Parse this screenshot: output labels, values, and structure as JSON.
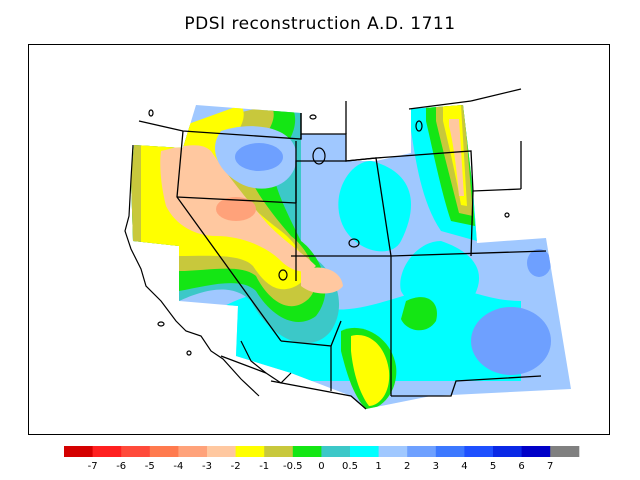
{
  "title": "PDSI reconstruction A.D. 1711",
  "colorbar": {
    "colors": [
      "#d40000",
      "#ff2020",
      "#ff4a3a",
      "#ff7a4e",
      "#ffa27a",
      "#ffc8a0",
      "#ffff00",
      "#c8c83c",
      "#14e614",
      "#3cc8c8",
      "#00ffff",
      "#a0c8ff",
      "#6ea0ff",
      "#3c78ff",
      "#1e50ff",
      "#0a28e6",
      "#0000c8",
      "#808080"
    ],
    "tick_labels": [
      "-7",
      "-6",
      "-5",
      "-4",
      "-3",
      "-2",
      "-1",
      "-0.5",
      "0",
      "0.5",
      "1",
      "2",
      "3",
      "4",
      "5",
      "6",
      "7"
    ]
  },
  "legend_colors": {
    "dry_moderate": "#ffc8a0",
    "dry_light": "#ffff00",
    "near_normal": "#c8c83c",
    "zero": "#14e614",
    "wet_light": "#3cc8c8",
    "wet_1": "#00ffff",
    "wet_2": "#a0c8ff",
    "wet_3": "#6ea0ff",
    "dry_strong": "#ffa27a",
    "dry_severe": "#ff7a4e"
  }
}
